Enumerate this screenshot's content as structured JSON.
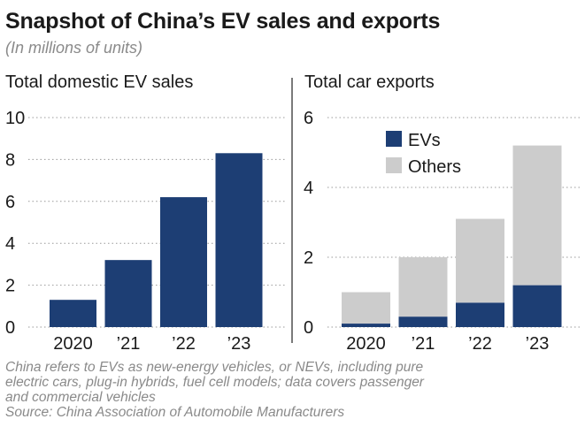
{
  "title": "Snapshot of China’s EV sales and exports",
  "subtitle": "(In millions of units)",
  "colors": {
    "ev": "#1d3e74",
    "others": "#cccccc",
    "grid": "#999999",
    "divider": "#333333"
  },
  "chart_data": [
    {
      "type": "bar",
      "title": "Total domestic EV sales",
      "categories": [
        "2020",
        "’21",
        "’22",
        "’23"
      ],
      "values": [
        1.3,
        3.2,
        6.2,
        8.3
      ],
      "ylim": [
        0,
        10
      ],
      "yticks": [
        0,
        2,
        4,
        6,
        8,
        10
      ],
      "xlabel": "",
      "ylabel": "",
      "grid": true
    },
    {
      "type": "bar",
      "stacked": true,
      "title": "Total car exports",
      "categories": [
        "2020",
        "’21",
        "’22",
        "’23"
      ],
      "series": [
        {
          "name": "EVs",
          "values": [
            0.1,
            0.3,
            0.7,
            1.2
          ]
        },
        {
          "name": "Others",
          "values": [
            0.9,
            1.7,
            2.4,
            4.0
          ]
        }
      ],
      "ylim": [
        0,
        6
      ],
      "yticks": [
        0,
        2,
        4,
        6
      ],
      "legend": "top-left",
      "xlabel": "",
      "ylabel": "",
      "grid": true
    }
  ],
  "notes": [
    "China refers to EVs as new-energy vehicles, or NEVs, including pure",
    "electric cars, plug-in hybrids, fuel cell models; data covers passenger",
    "and commercial vehicles"
  ],
  "source": "Source: China Association of Automobile Manufacturers"
}
